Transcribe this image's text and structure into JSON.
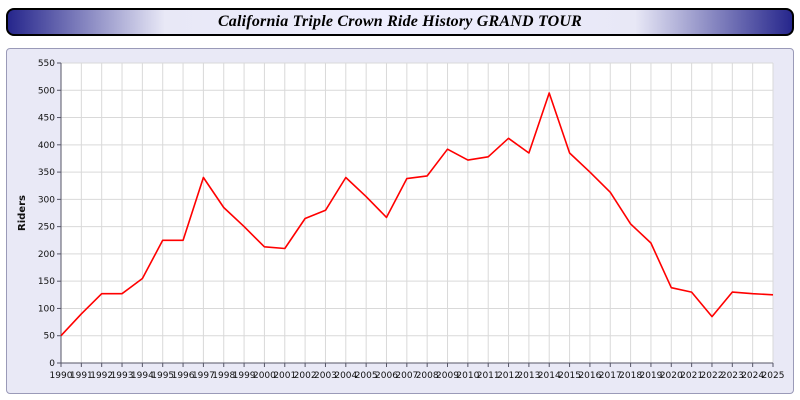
{
  "title": "California Triple Crown Ride History GRAND TOUR",
  "colors": {
    "line": "#ff0000",
    "panel_bg": "#e9e9f6",
    "plot_bg": "#ffffff",
    "grid": "#d9d9d9",
    "title_bar_edge": "#26268c",
    "title_bar_center": "#e8e8f6"
  },
  "chart_data": {
    "type": "line",
    "title": "California Triple Crown Ride History GRAND TOUR",
    "xlabel": "",
    "ylabel": "Riders",
    "ylim": [
      0,
      550
    ],
    "ytick_step": 50,
    "grid": true,
    "legend_position": "none",
    "x": [
      1990,
      1991,
      1992,
      1993,
      1994,
      1995,
      1996,
      1997,
      1998,
      1999,
      2000,
      2001,
      2002,
      2003,
      2004,
      2005,
      2006,
      2007,
      2008,
      2009,
      2010,
      2011,
      2012,
      2013,
      2014,
      2015,
      2016,
      2017,
      2018,
      2019,
      2020,
      2021,
      2022,
      2023,
      2024,
      2025
    ],
    "series": [
      {
        "name": "Riders",
        "color": "#ff0000",
        "values": [
          50,
          90,
          127,
          127,
          155,
          225,
          225,
          340,
          285,
          250,
          213,
          210,
          265,
          280,
          340,
          305,
          267,
          338,
          343,
          392,
          372,
          378,
          412,
          385,
          495,
          385,
          350,
          313,
          255,
          220,
          138,
          130,
          85,
          130,
          127,
          125
        ]
      }
    ]
  }
}
